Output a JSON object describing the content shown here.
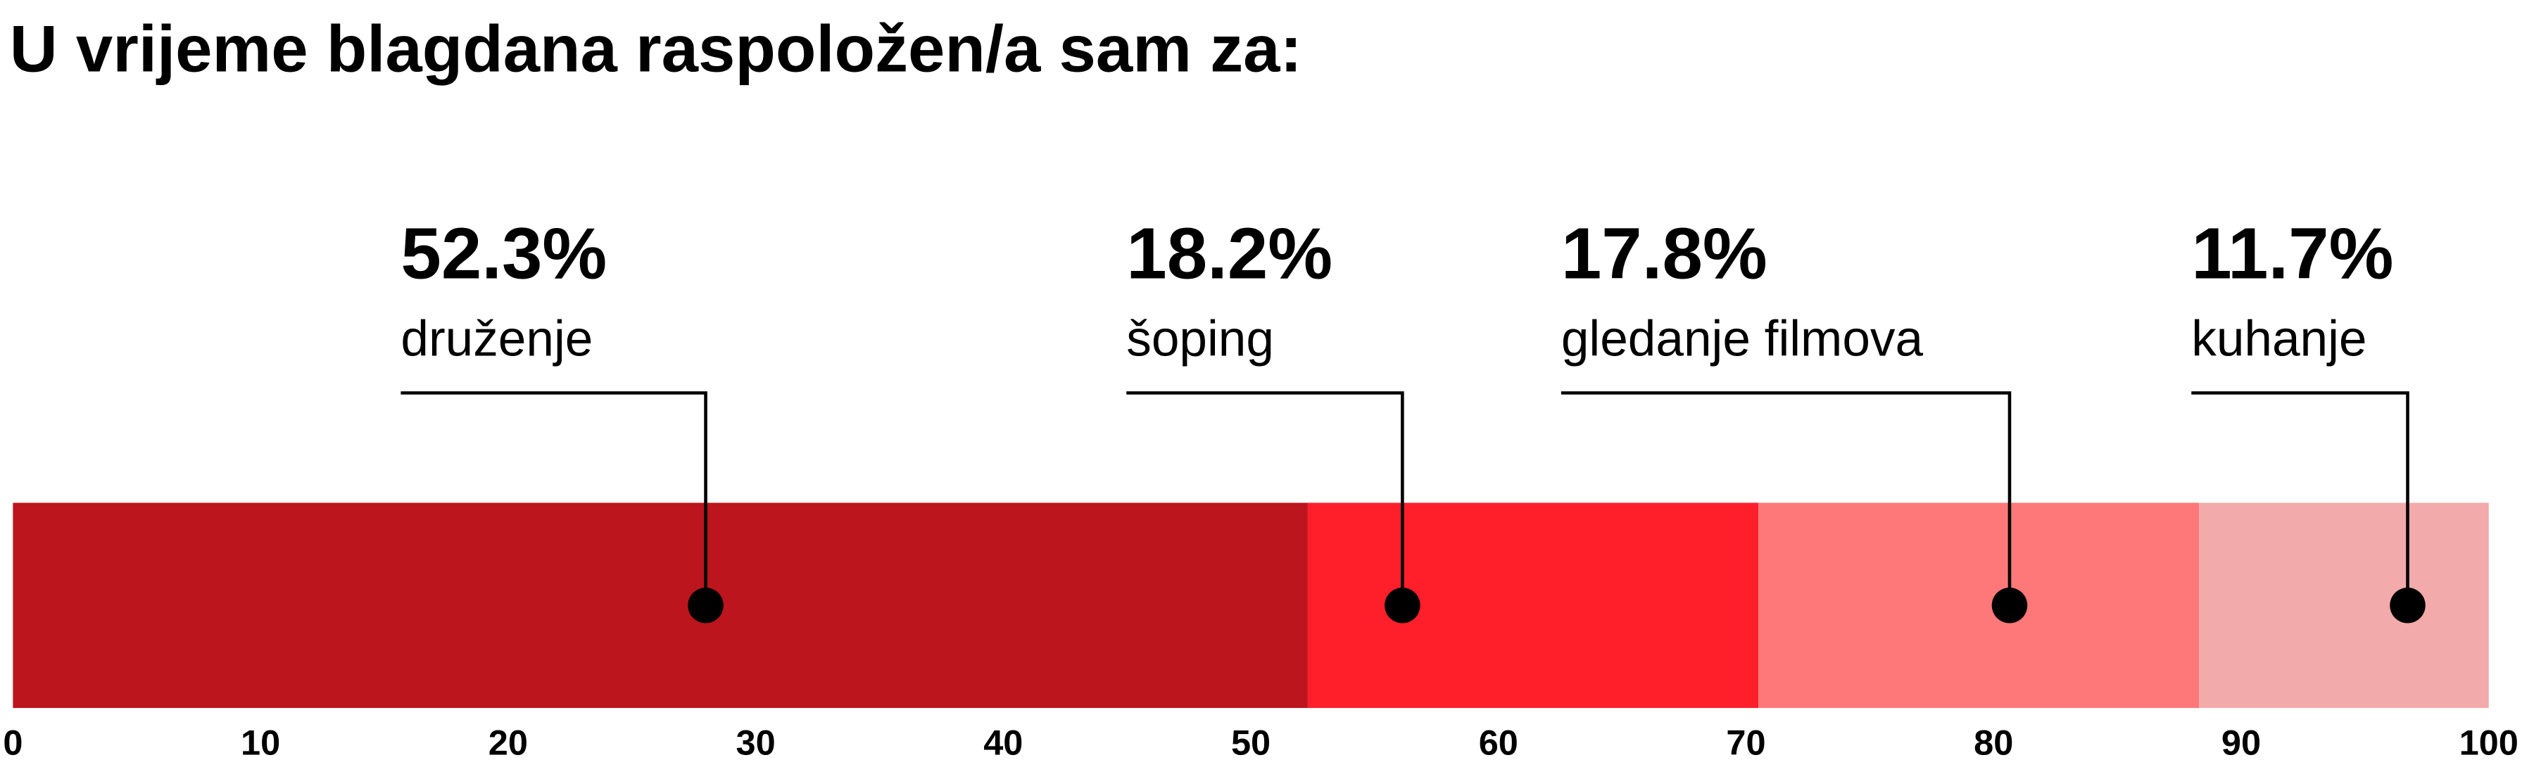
{
  "chart_data": {
    "type": "stacked-bar",
    "title": "U vrijeme blagdana raspoložen/a sam za:",
    "series": [
      {
        "name": "druženje",
        "color": "#bc151d",
        "values": [
          52.3
        ],
        "value_labels": [
          "52.3%"
        ]
      },
      {
        "name": "šoping",
        "color": "#fe1f2a",
        "values": [
          18.2
        ],
        "value_labels": [
          "18.2%"
        ]
      },
      {
        "name": "gledanje filmova",
        "color": "#fe7879",
        "values": [
          17.8
        ],
        "value_labels": [
          "17.8%"
        ]
      },
      {
        "name": "kuhanje",
        "color": "#f2aaaa",
        "values": [
          11.7
        ],
        "value_labels": [
          "11.7%"
        ]
      }
    ],
    "xlim": [
      0,
      100
    ],
    "xticks": [
      0,
      10,
      20,
      30,
      40,
      50,
      60,
      70,
      80,
      90,
      100
    ]
  }
}
